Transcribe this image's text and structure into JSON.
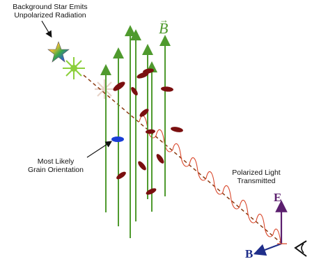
{
  "labels": {
    "star_line1": "Background Star Emits",
    "star_line2": "Unpolarized Radiation",
    "grain_line1": "Most Likely",
    "grain_line2": "Grain Orientation",
    "polarized_line1": "Polarized Light",
    "polarized_line2": "Transmitted",
    "b_field_symbol": "B",
    "e_vector_symbol": "E",
    "b_vector_symbol": "B"
  },
  "colors": {
    "field_lines": "#4f9a2e",
    "grains": "#7a0f0f",
    "aligned_grain": "#1a3ed6",
    "light_wave": "#d9472b",
    "light_path": "#8a3a10",
    "e_vector": "#5b1f6e",
    "b_vector": "#1f2e8a"
  },
  "icons": [
    "star-icon",
    "eye-icon"
  ]
}
